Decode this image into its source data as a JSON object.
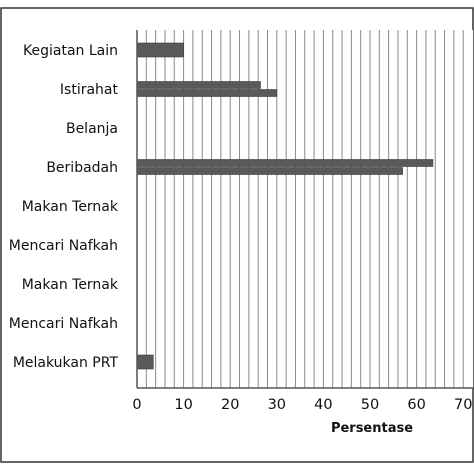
{
  "chart_data": {
    "type": "bar",
    "orientation": "horizontal",
    "categories": [
      "Kegiatan Lain",
      "Istirahat",
      "Belanja",
      "Beribadah",
      "Makan Ternak",
      "Mencari Nafkah",
      "Makan Ternak",
      "Mencari Nafkah",
      "Melakukan PRT"
    ],
    "series": [
      {
        "values": [
          10,
          26.5,
          0,
          63.5,
          0,
          0,
          0,
          0,
          3.5
        ]
      },
      {
        "values": [
          null,
          30,
          null,
          57,
          null,
          null,
          null,
          null,
          null
        ]
      }
    ],
    "xlabel": "Persentase",
    "ylabel": "",
    "xlim": [
      0,
      70
    ],
    "xticks": [
      0,
      10,
      20,
      30,
      40,
      50,
      60,
      70
    ],
    "grid": "vertical minor every 2",
    "colors": {
      "bar": "#5a5a5a",
      "bar_edge": "#3a3a3a",
      "grid": "#8a8a8a",
      "axis": "#555555",
      "frame": "#333333"
    }
  }
}
